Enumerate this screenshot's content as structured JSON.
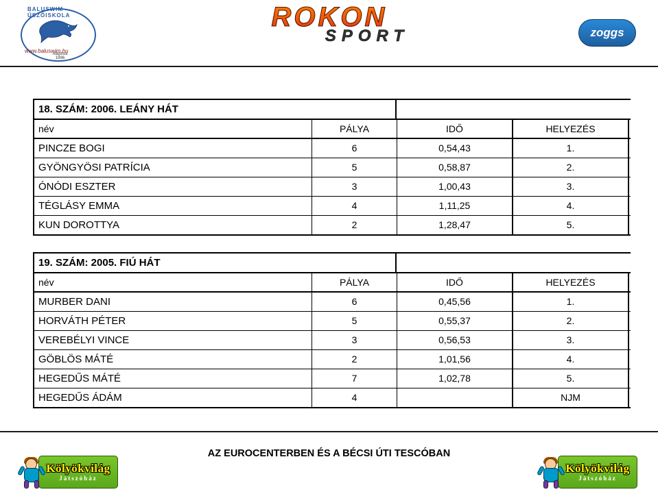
{
  "header": {
    "baluswim_top": "BALUSWIM ÚSZÓISKOLA",
    "baluswim_url": "www.baluswim.hu",
    "baluswim_since": "Alapítva 1996",
    "rokon_top": "ROKON",
    "rokon_bottom": "SPORT",
    "zoggs": "zoggs"
  },
  "columns": {
    "name": "név",
    "lane": "PÁLYA",
    "time": "IDŐ",
    "place": "HELYEZÉS"
  },
  "group1": {
    "title": "18. SZÁM: 2006. LEÁNY HÁT",
    "rows": [
      {
        "name": "PINCZE BOGI",
        "lane": "6",
        "time": "0,54,43",
        "place": "1."
      },
      {
        "name": "GYÖNGYÖSI PATRÍCIA",
        "lane": "5",
        "time": "0,58,87",
        "place": "2."
      },
      {
        "name": "ÓNÓDI ESZTER",
        "lane": "3",
        "time": "1,00,43",
        "place": "3."
      },
      {
        "name": "TÉGLÁSY EMMA",
        "lane": "4",
        "time": "1,11,25",
        "place": "4."
      },
      {
        "name": "KUN DOROTTYA",
        "lane": "2",
        "time": "1,28,47",
        "place": "5."
      }
    ]
  },
  "group2": {
    "title": "19. SZÁM: 2005. FIÚ HÁT",
    "rows": [
      {
        "name": "MURBER DANI",
        "lane": "6",
        "time": "0,45,56",
        "place": "1."
      },
      {
        "name": "HORVÁTH PÉTER",
        "lane": "5",
        "time": "0,55,37",
        "place": "2."
      },
      {
        "name": "VEREBÉLYI VINCE",
        "lane": "3",
        "time": "0,56,53",
        "place": "3."
      },
      {
        "name": "GÖBLÖS MÁTÉ",
        "lane": "2",
        "time": "1,01,56",
        "place": "4."
      },
      {
        "name": "HEGEDŰS MÁTÉ",
        "lane": "7",
        "time": "1,02,78",
        "place": "5."
      },
      {
        "name": "HEGEDŰS ÁDÁM",
        "lane": "4",
        "time": "",
        "place": "NJM"
      }
    ]
  },
  "footer": {
    "text": "AZ EUROCENTERBEN ÉS A BÉCSI ÚTI TESCÓBAN",
    "kv_line1": "Kölyökvilág",
    "kv_line2": "Játszóház"
  }
}
